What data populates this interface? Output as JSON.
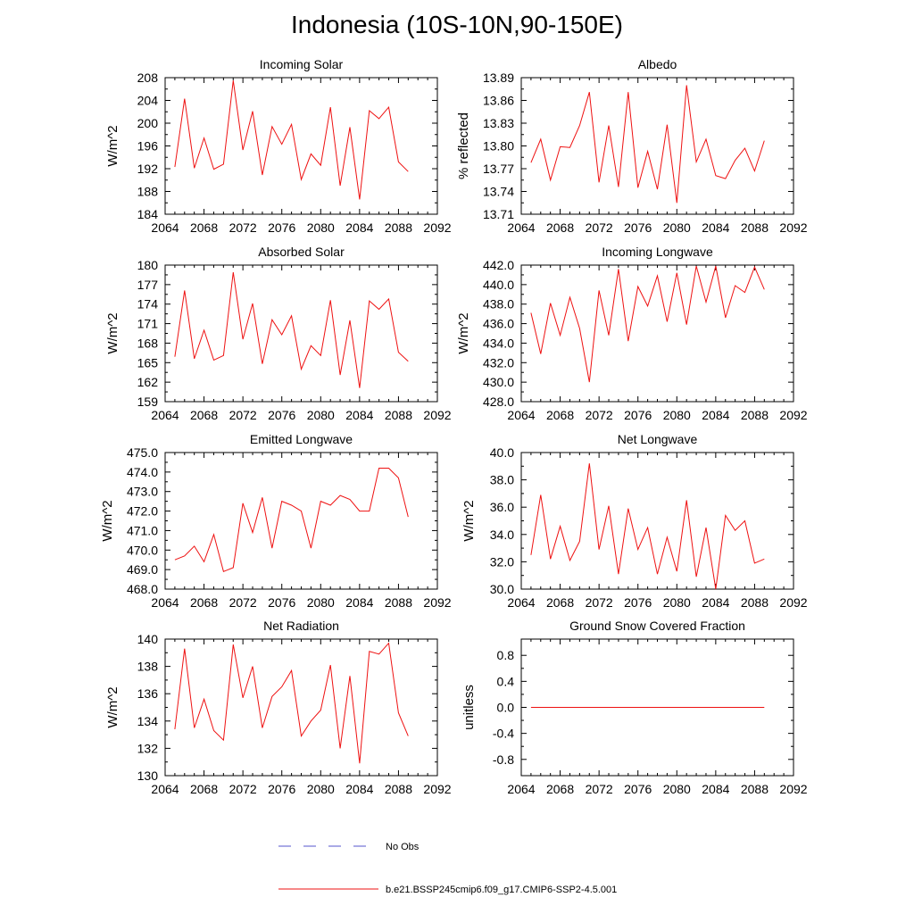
{
  "title": "Indonesia (10S-10N,90-150E)",
  "legend": [
    {
      "label": "No Obs",
      "color": "#5555cc",
      "dash": true
    },
    {
      "label": "b.e21.BSSP245cmip6.f09_g17.CMIP6-SSP2-4.5.001",
      "color": "#ee1111",
      "dash": false
    }
  ],
  "chart_data": [
    {
      "type": "line",
      "title": "Incoming Solar",
      "ylabel": "W/m^2",
      "xlim": [
        2064,
        2092
      ],
      "xticks": [
        2064,
        2068,
        2072,
        2076,
        2080,
        2084,
        2088,
        2092
      ],
      "ylim": [
        184,
        208
      ],
      "yticks": [
        "184",
        "188",
        "192",
        "196",
        "200",
        "204",
        "208"
      ],
      "x": [
        2065,
        2066,
        2067,
        2068,
        2069,
        2070,
        2071,
        2072,
        2073,
        2074,
        2075,
        2076,
        2077,
        2078,
        2079,
        2080,
        2081,
        2082,
        2083,
        2084,
        2085,
        2086,
        2087,
        2088,
        2089
      ],
      "values": [
        192.3,
        204.3,
        192.1,
        197.4,
        191.9,
        192.8,
        207.5,
        195.3,
        202.1,
        190.9,
        199.4,
        196.3,
        199.8,
        190.1,
        194.6,
        192.6,
        202.8,
        189.0,
        199.3,
        186.6,
        202.2,
        200.8,
        202.8,
        193.2,
        191.5
      ],
      "color": "#ee1111"
    },
    {
      "type": "line",
      "title": "Albedo",
      "ylabel": "% reflected",
      "xlim": [
        2064,
        2092
      ],
      "xticks": [
        2064,
        2068,
        2072,
        2076,
        2080,
        2084,
        2088,
        2092
      ],
      "ylim": [
        13.71,
        13.89
      ],
      "yticks": [
        "13.71",
        "13.74",
        "13.77",
        "13.80",
        "13.83",
        "13.86",
        "13.89"
      ],
      "x": [
        2065,
        2066,
        2067,
        2068,
        2069,
        2070,
        2071,
        2072,
        2073,
        2074,
        2075,
        2076,
        2077,
        2078,
        2079,
        2080,
        2081,
        2082,
        2083,
        2084,
        2085,
        2086,
        2087,
        2088,
        2089
      ],
      "values": [
        13.778,
        13.809,
        13.755,
        13.799,
        13.798,
        13.827,
        13.871,
        13.752,
        13.827,
        13.746,
        13.871,
        13.745,
        13.793,
        13.743,
        13.828,
        13.725,
        13.88,
        13.779,
        13.809,
        13.761,
        13.757,
        13.781,
        13.797,
        13.767,
        13.807
      ],
      "color": "#ee1111"
    },
    {
      "type": "line",
      "title": "Absorbed Solar",
      "ylabel": "W/m^2",
      "xlim": [
        2064,
        2092
      ],
      "xticks": [
        2064,
        2068,
        2072,
        2076,
        2080,
        2084,
        2088,
        2092
      ],
      "ylim": [
        159,
        180
      ],
      "yticks": [
        "159",
        "162",
        "165",
        "168",
        "171",
        "174",
        "177",
        "180"
      ],
      "x": [
        2065,
        2066,
        2067,
        2068,
        2069,
        2070,
        2071,
        2072,
        2073,
        2074,
        2075,
        2076,
        2077,
        2078,
        2079,
        2080,
        2081,
        2082,
        2083,
        2084,
        2085,
        2086,
        2087,
        2088,
        2089
      ],
      "values": [
        165.9,
        176.1,
        165.6,
        170.0,
        165.4,
        166.1,
        178.9,
        168.6,
        174.1,
        164.8,
        171.6,
        169.3,
        172.2,
        164.0,
        167.6,
        166.1,
        174.6,
        163.1,
        171.5,
        161.1,
        174.5,
        173.2,
        174.8,
        166.6,
        165.2
      ],
      "color": "#ee1111"
    },
    {
      "type": "line",
      "title": "Incoming Longwave",
      "ylabel": "W/m^2",
      "xlim": [
        2064,
        2092
      ],
      "xticks": [
        2064,
        2068,
        2072,
        2076,
        2080,
        2084,
        2088,
        2092
      ],
      "ylim": [
        428.0,
        442.0
      ],
      "yticks": [
        "428.0",
        "430.0",
        "432.0",
        "434.0",
        "436.0",
        "438.0",
        "440.0",
        "442.0"
      ],
      "x": [
        2065,
        2066,
        2067,
        2068,
        2069,
        2070,
        2071,
        2072,
        2073,
        2074,
        2075,
        2076,
        2077,
        2078,
        2079,
        2080,
        2081,
        2082,
        2083,
        2084,
        2085,
        2086,
        2087,
        2088,
        2089
      ],
      "values": [
        437.1,
        432.9,
        438.1,
        434.8,
        438.7,
        435.5,
        430.0,
        439.4,
        434.8,
        441.6,
        434.2,
        439.8,
        437.8,
        440.9,
        436.2,
        441.2,
        435.9,
        441.9,
        438.2,
        441.9,
        436.6,
        439.9,
        439.2,
        441.8,
        439.5
      ],
      "color": "#ee1111"
    },
    {
      "type": "line",
      "title": "Emitted Longwave",
      "ylabel": "W/m^2",
      "xlim": [
        2064,
        2092
      ],
      "xticks": [
        2064,
        2068,
        2072,
        2076,
        2080,
        2084,
        2088,
        2092
      ],
      "ylim": [
        468.0,
        475.0
      ],
      "yticks": [
        "468.0",
        "469.0",
        "470.0",
        "471.0",
        "472.0",
        "473.0",
        "474.0",
        "475.0"
      ],
      "x": [
        2065,
        2066,
        2067,
        2068,
        2069,
        2070,
        2071,
        2072,
        2073,
        2074,
        2075,
        2076,
        2077,
        2078,
        2079,
        2080,
        2081,
        2082,
        2083,
        2084,
        2085,
        2086,
        2087,
        2088,
        2089
      ],
      "values": [
        469.5,
        469.7,
        470.2,
        469.4,
        470.8,
        468.9,
        469.1,
        472.4,
        470.9,
        472.7,
        470.1,
        472.5,
        472.3,
        472.0,
        470.1,
        472.5,
        472.3,
        472.8,
        472.6,
        472.0,
        472.0,
        474.2,
        474.2,
        473.7,
        471.7
      ],
      "color": "#ee1111"
    },
    {
      "type": "line",
      "title": "Net Longwave",
      "ylabel": "W/m^2",
      "xlim": [
        2064,
        2092
      ],
      "xticks": [
        2064,
        2068,
        2072,
        2076,
        2080,
        2084,
        2088,
        2092
      ],
      "ylim": [
        30.0,
        40.0
      ],
      "yticks": [
        "30.0",
        "32.0",
        "34.0",
        "36.0",
        "38.0",
        "40.0"
      ],
      "x": [
        2065,
        2066,
        2067,
        2068,
        2069,
        2070,
        2071,
        2072,
        2073,
        2074,
        2075,
        2076,
        2077,
        2078,
        2079,
        2080,
        2081,
        2082,
        2083,
        2084,
        2085,
        2086,
        2087,
        2088,
        2089
      ],
      "values": [
        32.5,
        36.9,
        32.2,
        34.6,
        32.1,
        33.5,
        39.2,
        32.9,
        36.1,
        31.1,
        35.9,
        32.9,
        34.5,
        31.1,
        33.8,
        31.3,
        36.5,
        30.9,
        34.5,
        30.0,
        35.4,
        34.3,
        35.0,
        31.9,
        32.2
      ],
      "color": "#ee1111"
    },
    {
      "type": "line",
      "title": "Net Radiation",
      "ylabel": "W/m^2",
      "xlim": [
        2064,
        2092
      ],
      "xticks": [
        2064,
        2068,
        2072,
        2076,
        2080,
        2084,
        2088,
        2092
      ],
      "ylim": [
        130,
        140
      ],
      "yticks": [
        "130",
        "132",
        "134",
        "136",
        "138",
        "140"
      ],
      "x": [
        2065,
        2066,
        2067,
        2068,
        2069,
        2070,
        2071,
        2072,
        2073,
        2074,
        2075,
        2076,
        2077,
        2078,
        2079,
        2080,
        2081,
        2082,
        2083,
        2084,
        2085,
        2086,
        2087,
        2088,
        2089
      ],
      "values": [
        133.4,
        139.3,
        133.5,
        135.6,
        133.3,
        132.6,
        139.6,
        135.7,
        138.0,
        133.5,
        135.8,
        136.5,
        137.7,
        132.9,
        134.0,
        134.8,
        138.1,
        132.0,
        137.3,
        130.9,
        139.1,
        138.9,
        139.7,
        134.6,
        132.9
      ],
      "color": "#ee1111"
    },
    {
      "type": "line",
      "title": "Ground Snow Covered Fraction",
      "ylabel": "unitless",
      "xlim": [
        2064,
        2092
      ],
      "xticks": [
        2064,
        2068,
        2072,
        2076,
        2080,
        2084,
        2088,
        2092
      ],
      "ylim": [
        -1.05,
        1.05
      ],
      "yticks": [
        "-0.8",
        "-0.4",
        "0.0",
        "0.4",
        "0.8"
      ],
      "ytick_values": [
        -0.8,
        -0.4,
        0.0,
        0.4,
        0.8
      ],
      "x": [
        2065,
        2066,
        2067,
        2068,
        2069,
        2070,
        2071,
        2072,
        2073,
        2074,
        2075,
        2076,
        2077,
        2078,
        2079,
        2080,
        2081,
        2082,
        2083,
        2084,
        2085,
        2086,
        2087,
        2088,
        2089
      ],
      "values": [
        0,
        0,
        0,
        0,
        0,
        0,
        0,
        0,
        0,
        0,
        0,
        0,
        0,
        0,
        0,
        0,
        0,
        0,
        0,
        0,
        0,
        0,
        0,
        0,
        0
      ],
      "color": "#ee1111"
    }
  ]
}
